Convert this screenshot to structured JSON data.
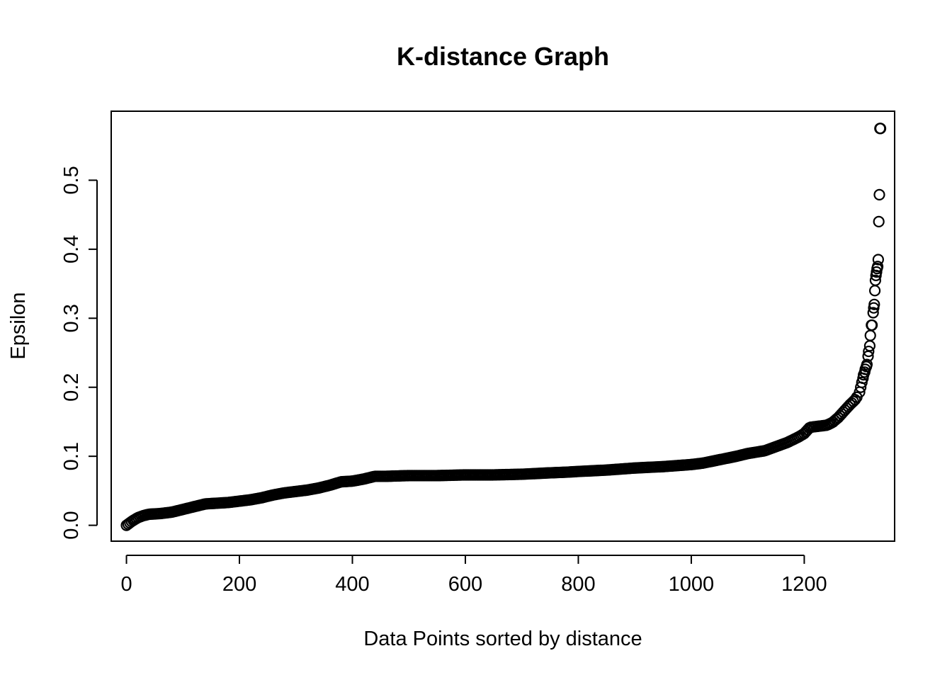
{
  "chart_data": {
    "type": "scatter",
    "title": "K-distance Graph",
    "xlabel": "Data Points sorted by distance",
    "ylabel": "Epsilon",
    "xlim": [
      -27,
      1360
    ],
    "ylim": [
      -0.023,
      0.6
    ],
    "x_ticks": [
      0,
      200,
      400,
      600,
      800,
      1000,
      1200
    ],
    "x_tick_labels": [
      "0",
      "200",
      "400",
      "600",
      "800",
      "1000",
      "1200"
    ],
    "y_ticks": [
      0.0,
      0.1,
      0.2,
      0.3,
      0.4,
      0.5
    ],
    "y_tick_labels": [
      "0.0",
      "0.1",
      "0.2",
      "0.3",
      "0.4",
      "0.5"
    ],
    "grid": false,
    "legend": "none",
    "marker": "open-circle",
    "n_points": 1335,
    "curve": {
      "x": [
        0,
        10,
        20,
        30,
        40,
        60,
        80,
        100,
        120,
        140,
        160,
        180,
        200,
        220,
        240,
        260,
        280,
        300,
        320,
        340,
        360,
        380,
        400,
        420,
        440,
        460,
        500,
        550,
        600,
        650,
        700,
        750,
        780,
        800,
        850,
        900,
        950,
        1000,
        1020,
        1050,
        1080,
        1100,
        1130,
        1150,
        1170,
        1190,
        1200,
        1210,
        1220,
        1240,
        1250,
        1260,
        1270,
        1280,
        1290,
        1295
      ],
      "y": [
        0.0,
        0.006,
        0.011,
        0.014,
        0.016,
        0.017,
        0.019,
        0.023,
        0.027,
        0.031,
        0.032,
        0.033,
        0.035,
        0.037,
        0.04,
        0.044,
        0.047,
        0.049,
        0.051,
        0.054,
        0.058,
        0.063,
        0.064,
        0.067,
        0.071,
        0.071,
        0.072,
        0.072,
        0.073,
        0.073,
        0.074,
        0.076,
        0.077,
        0.078,
        0.08,
        0.083,
        0.085,
        0.088,
        0.09,
        0.095,
        0.1,
        0.104,
        0.108,
        0.114,
        0.12,
        0.128,
        0.133,
        0.142,
        0.143,
        0.145,
        0.149,
        0.156,
        0.165,
        0.174,
        0.182,
        0.188
      ]
    },
    "tail_points": {
      "x": [
        1298,
        1300,
        1302,
        1304,
        1305,
        1307,
        1308,
        1310,
        1311,
        1313,
        1314,
        1316,
        1317,
        1319,
        1320,
        1322,
        1323,
        1324,
        1325,
        1326,
        1327,
        1328,
        1329,
        1330,
        1331,
        1332,
        1333,
        1334,
        1335
      ],
      "y": [
        0.193,
        0.2,
        0.207,
        0.213,
        0.218,
        0.222,
        0.226,
        0.23,
        0.233,
        0.245,
        0.252,
        0.26,
        0.275,
        0.29,
        0.29,
        0.308,
        0.315,
        0.32,
        0.34,
        0.355,
        0.362,
        0.367,
        0.372,
        0.375,
        0.385,
        0.44,
        0.479,
        0.575,
        0.575
      ]
    }
  }
}
